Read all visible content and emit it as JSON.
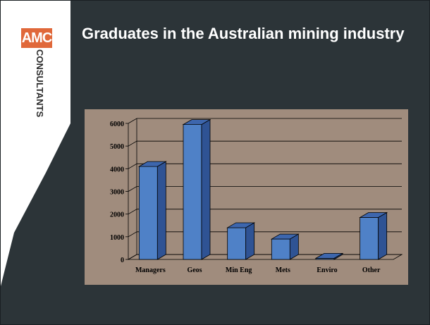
{
  "slide": {
    "title": "Graduates in the Australian mining industry",
    "logo": {
      "top": "AMC",
      "side": "CONSULTANTS"
    }
  },
  "colors": {
    "background": "#2c3438",
    "panel_white": "#ffffff",
    "logo_orange": "#e0683a",
    "chart_bg": "#a08c7d",
    "bar_front": "#4f81c7",
    "bar_side": "#2f5394",
    "bar_top": "#3d66ad"
  },
  "chart_data": {
    "type": "bar",
    "categories": [
      "Managers",
      "Geos",
      "Min Eng",
      "Mets",
      "Enviro",
      "Other"
    ],
    "values": [
      4100,
      5950,
      1400,
      900,
      50,
      1850
    ],
    "ylim": [
      0,
      6000
    ],
    "yticks": [
      0,
      1000,
      2000,
      3000,
      4000,
      5000,
      6000
    ],
    "grid": true,
    "style": "3d-bar"
  }
}
